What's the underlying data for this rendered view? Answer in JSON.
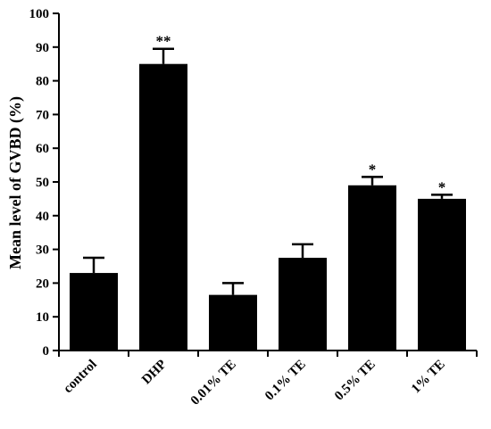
{
  "chart_data": {
    "type": "bar",
    "title": "",
    "xlabel": "",
    "ylabel": "Mean level of GVBD (%)",
    "ylim": [
      0,
      100
    ],
    "yticks": [
      0,
      10,
      20,
      30,
      40,
      50,
      60,
      70,
      80,
      90,
      100
    ],
    "categories": [
      "control",
      "DHP",
      "0.01% TE",
      "0.1% TE",
      "0.5% TE",
      "1% TE"
    ],
    "values": [
      23,
      85,
      16.5,
      27.5,
      49,
      45
    ],
    "errors": [
      4.5,
      4.5,
      3.5,
      4,
      2.5,
      1.2
    ],
    "significance": [
      "",
      "**",
      "",
      "",
      "*",
      "*"
    ],
    "bar_color": "#000000",
    "grid": false,
    "legend": "none"
  }
}
